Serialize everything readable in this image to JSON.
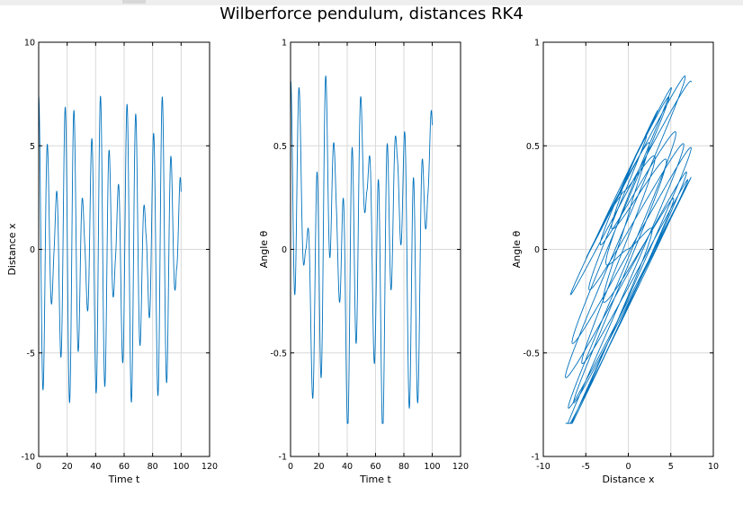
{
  "figure": {
    "title": "Wilberforce pendulum, distances RK4"
  },
  "colors": {
    "line": "#0072BD",
    "grid": "#d9d9d9",
    "axes": "#000000"
  },
  "chart_data": [
    {
      "type": "line",
      "xlabel": "Time t",
      "ylabel": "Distance x",
      "xlim": [
        0,
        120
      ],
      "ylim": [
        -10,
        10
      ],
      "xticks": [
        "0",
        "20",
        "40",
        "60",
        "80",
        "100",
        "120"
      ],
      "yticks": [
        "-10",
        "-5",
        "0",
        "5",
        "10"
      ],
      "grid": true,
      "series": [
        {
          "x_range": [
            0,
            100
          ],
          "model": {
            "amp_max": 7.4,
            "amp_min": 1.2,
            "period": 6.2,
            "mod_period": 21.5
          }
        }
      ]
    },
    {
      "type": "line",
      "xlabel": "Time t",
      "ylabel": "Angle θ",
      "xlim": [
        0,
        120
      ],
      "ylim": [
        -1,
        1
      ],
      "xticks": [
        "0",
        "20",
        "40",
        "60",
        "80",
        "100",
        "120"
      ],
      "yticks": [
        "-1",
        "-0.5",
        "0",
        "0.5",
        "1"
      ],
      "grid": true,
      "series": [
        {
          "x_range": [
            0,
            100
          ],
          "model": {
            "amp_max": 0.85,
            "period": 6.2,
            "mod_period": 21.5
          }
        }
      ]
    },
    {
      "type": "line",
      "xlabel": "Distance x",
      "ylabel": "Angle θ",
      "xlim": [
        -10,
        10
      ],
      "ylim": [
        -1,
        1
      ],
      "xticks": [
        "-10",
        "-5",
        "0",
        "5",
        "10"
      ],
      "yticks": [
        "-1",
        "-0.5",
        "0",
        "0.5",
        "1"
      ],
      "grid": true,
      "series": [
        {
          "parametric": "phase portrait of panel 1 vs panel 2",
          "t_range": [
            0,
            100
          ]
        }
      ]
    }
  ]
}
